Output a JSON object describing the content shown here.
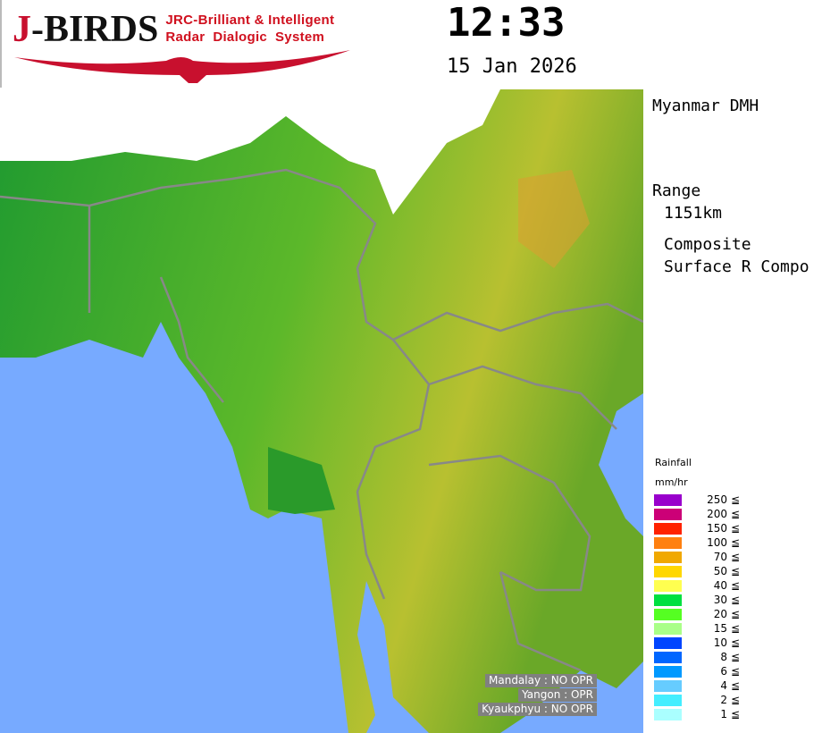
{
  "logo": {
    "letter": "J",
    "name": "-BIRDS",
    "line1": "JRC-Brilliant & Intelligent",
    "line2": "Radar  Dialogic  System",
    "color": "#c8102e"
  },
  "clock": {
    "time": "12:33",
    "date": "15 Jan 2026"
  },
  "info": {
    "agency": "Myanmar DMH",
    "range_label": "Range",
    "range_value": "1151km",
    "product_line1": "Composite",
    "product_line2": "Surface R Compo"
  },
  "legend": {
    "title": "Rainfall",
    "unit": "mm/hr",
    "operator": "≦",
    "items": [
      {
        "value": "250",
        "color": "#9900cc"
      },
      {
        "value": "200",
        "color": "#cc0077"
      },
      {
        "value": "150",
        "color": "#ff2200"
      },
      {
        "value": "100",
        "color": "#ff8010"
      },
      {
        "value": "70",
        "color": "#f0a800"
      },
      {
        "value": "50",
        "color": "#ffd700"
      },
      {
        "value": "40",
        "color": "#ffff50"
      },
      {
        "value": "30",
        "color": "#00e040"
      },
      {
        "value": "20",
        "color": "#55ff22"
      },
      {
        "value": "15",
        "color": "#aaff88"
      },
      {
        "value": "10",
        "color": "#0044ff"
      },
      {
        "value": "8",
        "color": "#0066ff"
      },
      {
        "value": "6",
        "color": "#0099ff"
      },
      {
        "value": "4",
        "color": "#66ccff"
      },
      {
        "value": "2",
        "color": "#44eeff"
      },
      {
        "value": "1",
        "color": "#aaffff"
      }
    ]
  },
  "radars": [
    {
      "text": "Mandalay : NO OPR"
    },
    {
      "text": "Yangon : OPR"
    },
    {
      "text": "Kyaukphyu : NO OPR"
    }
  ],
  "colors": {
    "sea": "#77aaff",
    "land": "#2a9a2a",
    "border": "#888888"
  }
}
